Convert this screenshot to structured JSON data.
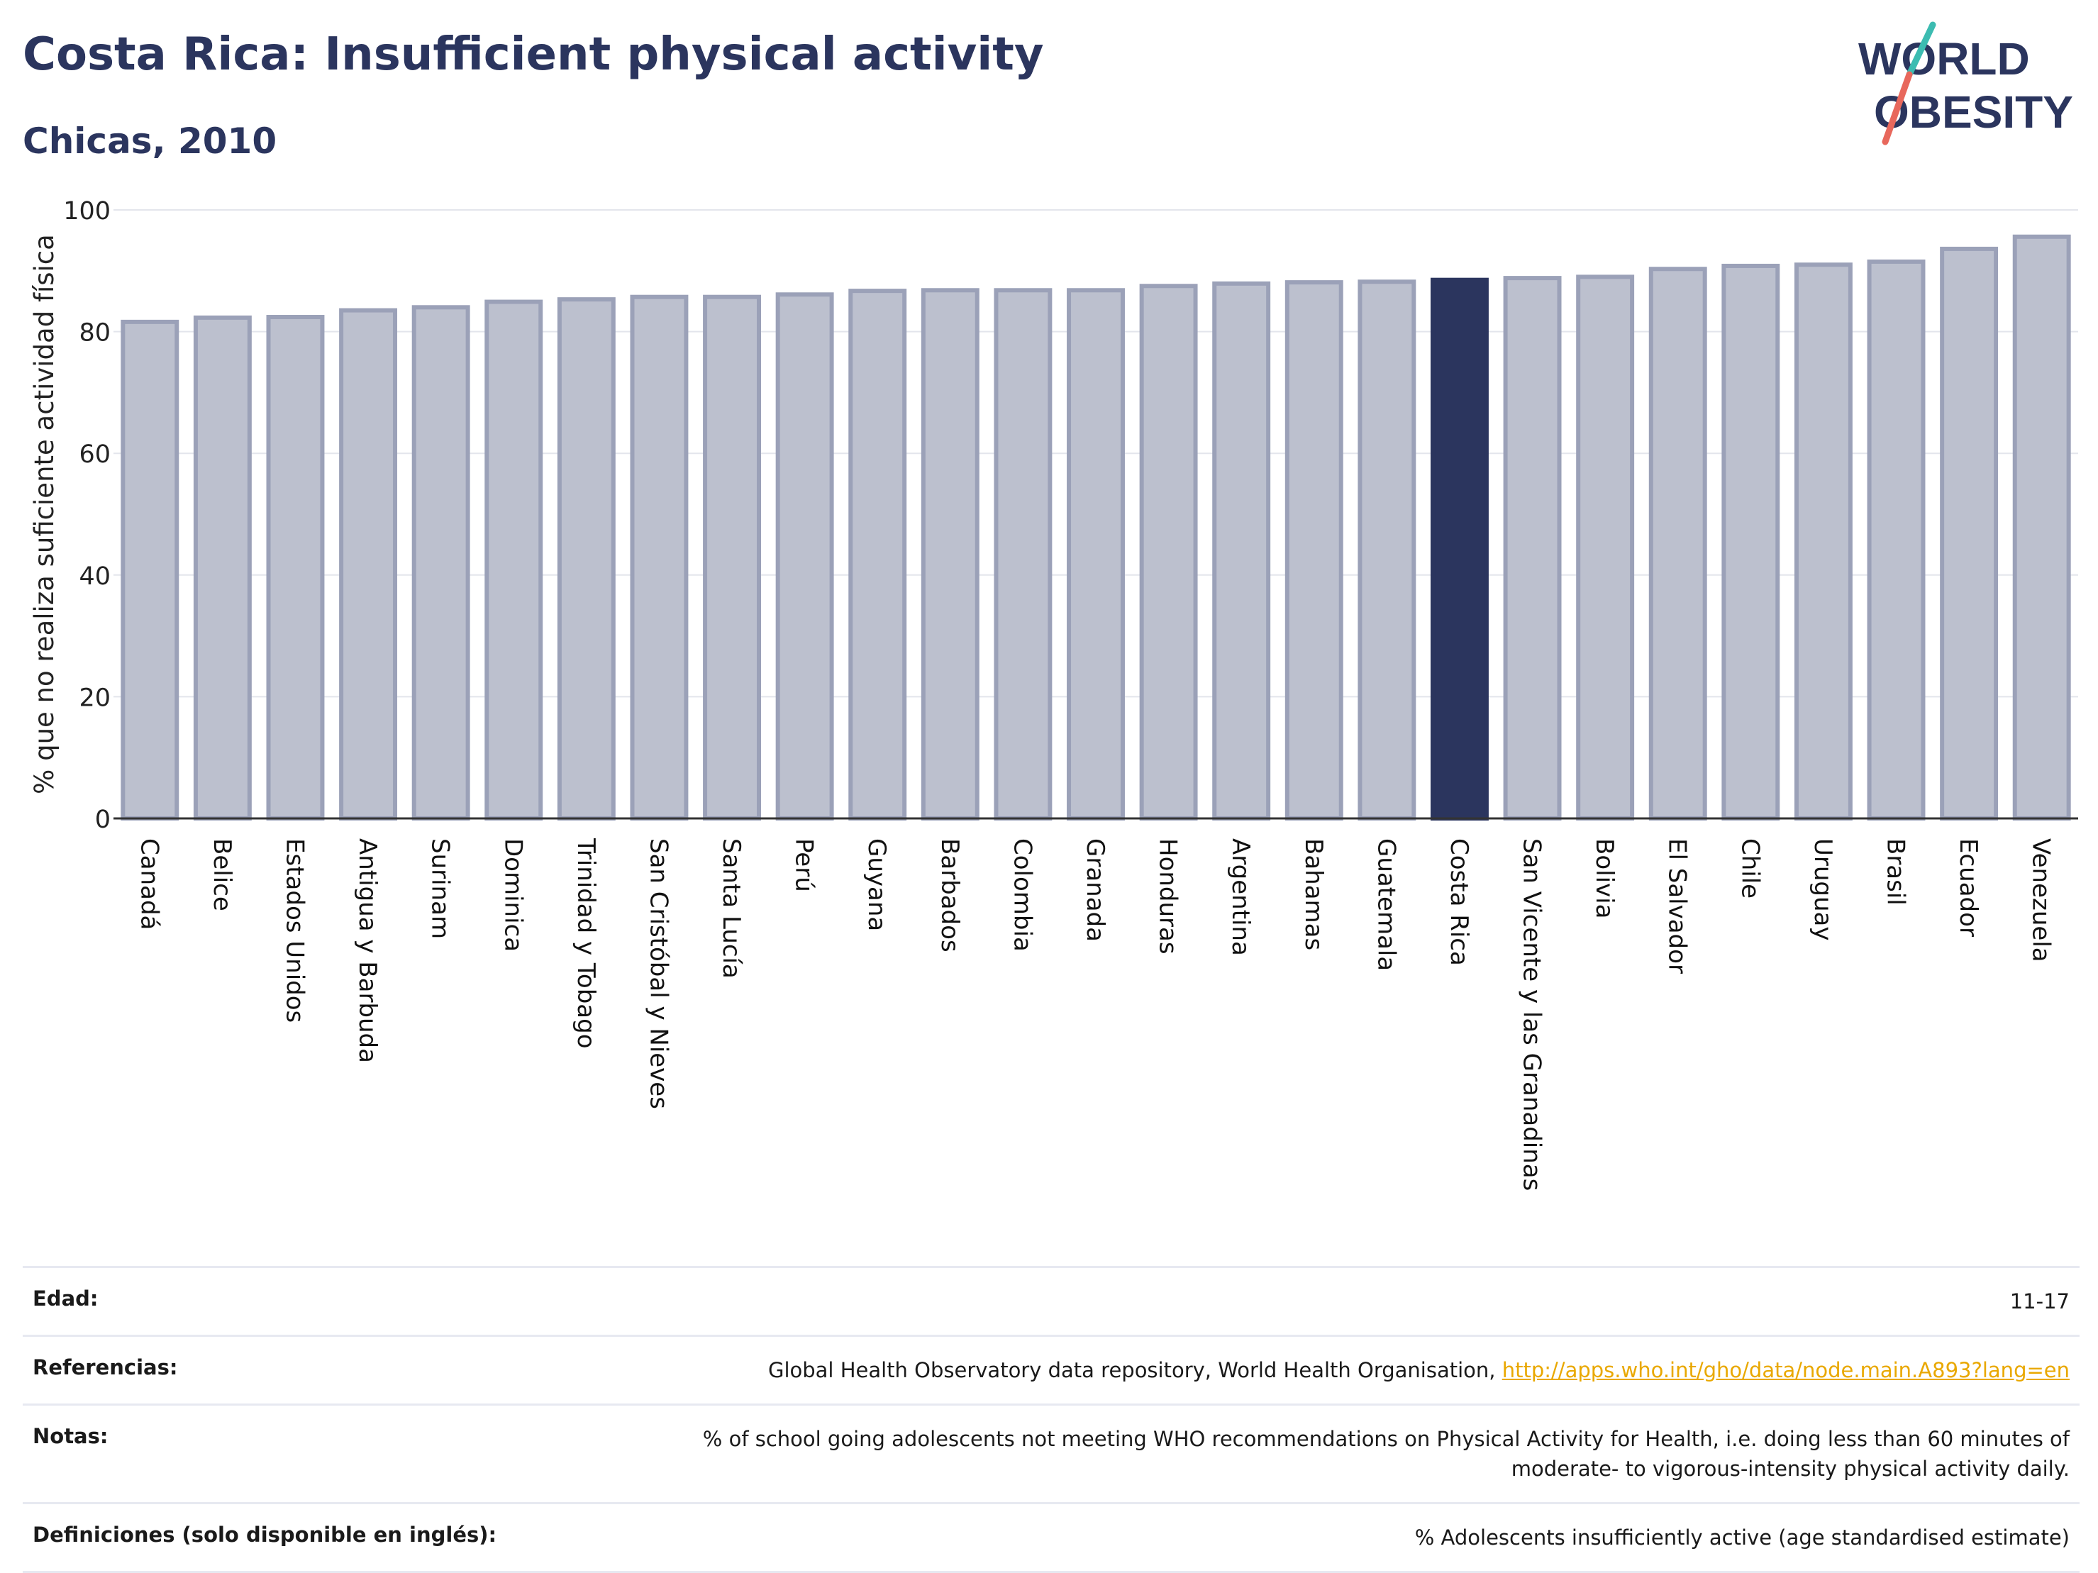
{
  "header": {
    "title": "Costa Rica: Insufficient physical activity",
    "subtitle": "Chicas, 2010"
  },
  "logo": {
    "line1": "WORLD",
    "line2": "OBESITY",
    "colors": {
      "text": "#2b355e",
      "slash_top": "#3cbcb1",
      "slash_bottom": "#e8685c"
    }
  },
  "colors": {
    "bar": "#bcc0ce",
    "bar_edge": "#9ba1b8",
    "highlight": "#2b355e",
    "grid": "#e3e5ec",
    "axis": "#333333",
    "link": "#e9a800"
  },
  "chart_data": {
    "type": "bar",
    "title": "Costa Rica: Insufficient physical activity",
    "subtitle": "Chicas, 2010",
    "ylabel": "% que no realiza suficiente actividad física",
    "xlabel": "",
    "ylim": [
      0,
      100
    ],
    "yticks": [
      0,
      20,
      40,
      60,
      80,
      100
    ],
    "grid": true,
    "highlight": "Costa Rica",
    "categories": [
      "Canadá",
      "Belice",
      "Estados Unidos",
      "Antigua y Barbuda",
      "Surinam",
      "Dominica",
      "Trinidad y Tobago",
      "San Cristóbal y Nieves",
      "Santa Lucía",
      "Perú",
      "Guyana",
      "Barbados",
      "Colombia",
      "Granada",
      "Honduras",
      "Argentina",
      "Bahamas",
      "Guatemala",
      "Costa Rica",
      "San Vicente y las Granadinas",
      "Bolivia",
      "El Salvador",
      "Chile",
      "Uruguay",
      "Brasil",
      "Ecuador",
      "Venezuela"
    ],
    "values": [
      81.6,
      82.3,
      82.4,
      83.5,
      84.0,
      84.9,
      85.3,
      85.7,
      85.7,
      86.1,
      86.7,
      86.8,
      86.8,
      86.8,
      87.5,
      87.9,
      88.1,
      88.2,
      88.5,
      88.8,
      89.0,
      90.3,
      90.8,
      91.0,
      91.5,
      93.6,
      95.6
    ]
  },
  "table": [
    {
      "key": "Edad:",
      "value": "11-17"
    },
    {
      "key": "Referencias:",
      "value": "Global Health Observatory data repository, World Health Organisation, ",
      "link": "http://apps.who.int/gho/data/node.main.A893?lang=en"
    },
    {
      "key": "Notas:",
      "value": "% of school going adolescents not meeting WHO recommendations on Physical Activity for Health, i.e. doing less than 60 minutes of",
      "value2": "moderate- to vigorous-intensity physical activity daily."
    },
    {
      "key": "Definiciones (solo disponible en inglés):",
      "value": "% Adolescents insufficiently active (age standardised estimate)"
    }
  ]
}
